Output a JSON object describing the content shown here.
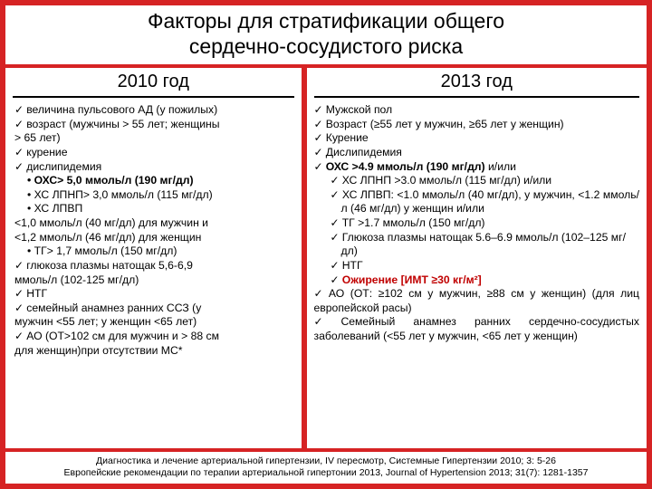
{
  "title_line1": "Факторы для стратификации общего",
  "title_line2": "сердечно-сосудистого риска",
  "left": {
    "year": "2010 год",
    "l1": "величина пульсового АД (у пожилых)",
    "l2a": "возраст (мужчины > 55 лет; женщины",
    "l2b": "> 65 лет)",
    "l3": "курение",
    "l4": "дислипидемия",
    "l4a": "• ОХС> 5,0 ммоль/л (190 мг/дл)",
    "l4b": "• ХС ЛПНП> 3,0 ммоль/л (115 мг/дл)",
    "l4c": "• ХС ЛПВП",
    "l5a": "<1,0 ммоль/л (40 мг/дл) для мужчин и",
    "l5b": "<1,2 ммоль/л (46 мг/дл) для женщин",
    "l5c": "• ТГ> 1,7 ммоль/л (150 мг/дл)",
    "l6a": "глюкоза плазмы натощак 5,6-6,9",
    "l6b": "ммоль/л (102-125 мг/дл)",
    "l7": "НТГ",
    "l8a": "семейный анамнез ранних ССЗ (у",
    "l8b": "мужчин <55 лет; у женщин <65 лет)",
    "l9a": "АО (ОТ>102 см для мужчин и > 88 см",
    "l9b": "для женщин)при отсутствии МС*"
  },
  "right": {
    "year": "2013 год",
    "r1": "Мужской пол",
    "r2": "Возраст (≥55 лет у мужчин, ≥65 лет у женщин)",
    "r3": "Курение",
    "r4": "Дислипидемия",
    "r5a": "ОХС >4.9 ммоль/л (190 мг/дл)",
    "r5b": " и/или",
    "r6": "ХС ЛПНП >3.0 ммоль/л (115 мг/дл) и/или",
    "r7": "ХС ЛПВП: <1.0 ммоль/л (40 мг/дл), у мужчин, <1.2 ммоль/л (46 мг/дл) у женщин и/или",
    "r8": "ТГ >1.7 ммоль/л (150 мг/дл)",
    "r9": "Глюкоза плазмы натощак 5.6–6.9 ммоль/л (102–125 мг/дл)",
    "r10": "НТГ",
    "r11": "Ожирение [ИМТ ≥30 кг/м²]",
    "r12": "АО (ОТ: ≥102 см у мужчин, ≥88 см у женщин) (для лиц европейской расы)",
    "r13": "Семейный анамнез ранних сердечно-сосудистых заболеваний (<55 лет у мужчин, <65 лет у женщин)"
  },
  "footer1": "Диагностика и лечение артериальной гипертензии, IV пересмотр, Системные Гипертензии 2010; 3: 5-26",
  "footer2": "Европейские рекомендации по терапии артериальной гипертонии 2013, Journal of Hypertension 2013; 31(7): 1281-1357"
}
